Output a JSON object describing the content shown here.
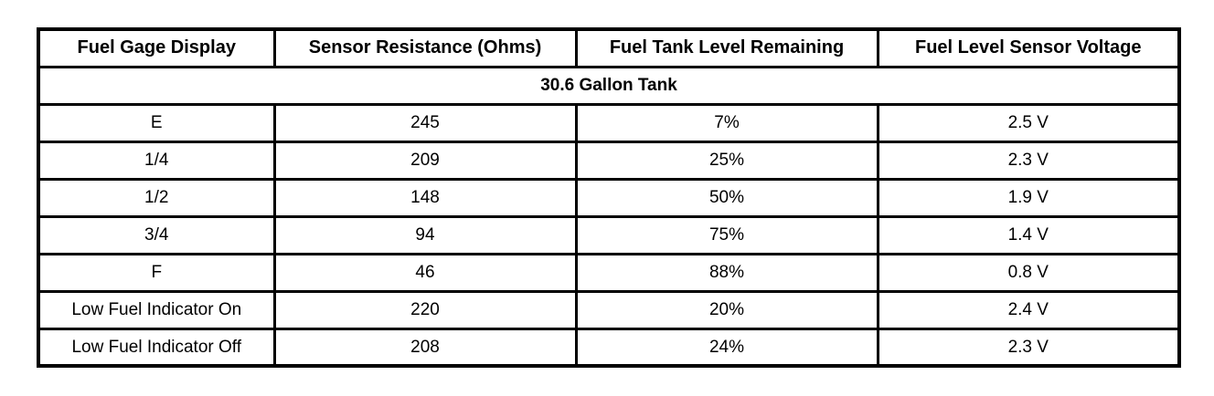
{
  "table": {
    "headers": [
      "Fuel Gage Display",
      "Sensor Resistance (Ohms)",
      "Fuel Tank Level Remaining",
      "Fuel Level Sensor Voltage"
    ],
    "subheader": "30.6 Gallon Tank",
    "rows": [
      [
        "E",
        "245",
        "7%",
        "2.5 V"
      ],
      [
        "1/4",
        "209",
        "25%",
        "2.3 V"
      ],
      [
        "1/2",
        "148",
        "50%",
        "1.9 V"
      ],
      [
        "3/4",
        "94",
        "75%",
        "1.4 V"
      ],
      [
        "F",
        "46",
        "88%",
        "0.8 V"
      ],
      [
        "Low Fuel Indicator On",
        "220",
        "20%",
        "2.4 V"
      ],
      [
        "Low Fuel Indicator Off",
        "208",
        "24%",
        "2.3 V"
      ]
    ],
    "colors": {
      "border": "#000000",
      "background": "#ffffff",
      "text": "#000000"
    }
  }
}
